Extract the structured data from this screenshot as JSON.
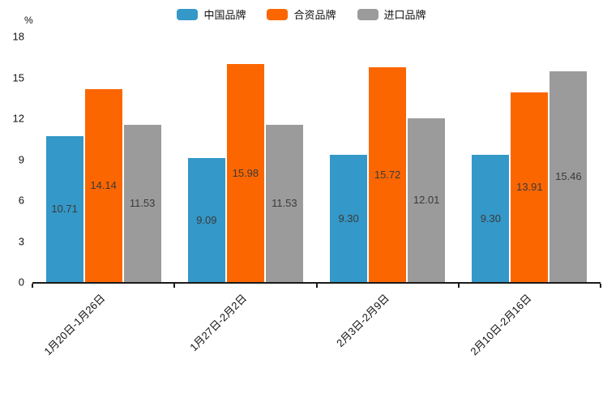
{
  "chart": {
    "unit_label": "%"
  },
  "chart_data": {
    "type": "bar",
    "title": "",
    "categories": [
      "1月20日-1月26日",
      "1月27日-2月2日",
      "2月3日-2月9日",
      "2月10日-2月16日"
    ],
    "series": [
      {
        "name": "中国品牌",
        "color": "#3498c8",
        "values": [
          10.71,
          9.09,
          9.3,
          9.3
        ]
      },
      {
        "name": "合资品牌",
        "color": "#fc6600",
        "values": [
          14.14,
          15.98,
          15.72,
          13.91
        ]
      },
      {
        "name": "进口品牌",
        "color": "#9b9b9b",
        "values": [
          11.53,
          11.53,
          12.01,
          15.46
        ]
      }
    ],
    "xlabel": "",
    "ylabel": "%",
    "ylim": [
      0,
      18
    ],
    "yticks": [
      0,
      3,
      6,
      9,
      12,
      15,
      18
    ],
    "grid": false,
    "legend_position": "top-center",
    "value_labels": true,
    "value_label_decimals": 2,
    "bar_label_color": "#3a3a3a",
    "axis_color": "#1a1a1a"
  }
}
